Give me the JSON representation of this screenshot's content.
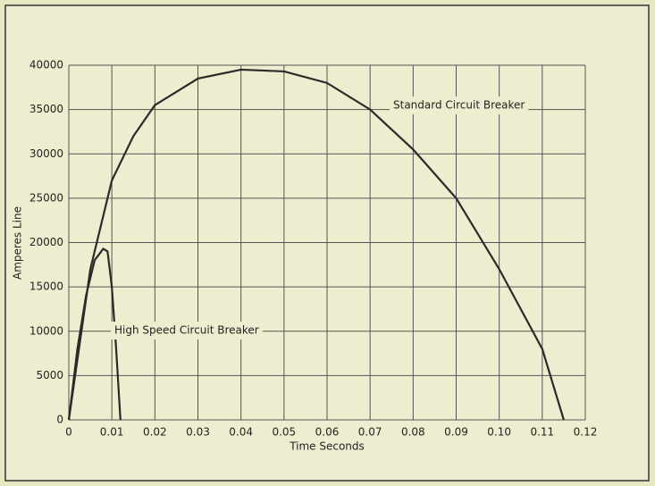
{
  "chart_data": {
    "type": "line",
    "x_label": "Time Seconds",
    "y_label": "Amperes Line",
    "xlim": [
      0,
      0.12
    ],
    "xticks": [
      0,
      0.01,
      0.02,
      0.03,
      0.04,
      0.05,
      0.06,
      0.07,
      0.08,
      0.09,
      {
        "value": 0.1,
        "label": "0.10"
      },
      0.11,
      0.12
    ],
    "ylim": [
      0,
      40000
    ],
    "yticks": [
      0,
      5000,
      10000,
      15000,
      20000,
      25000,
      30000,
      35000,
      40000
    ],
    "grid": true,
    "series": [
      {
        "name": "Standard Circuit Breaker",
        "color": "#2a2a2a",
        "x": [
          0,
          0.005,
          0.01,
          0.015,
          0.02,
          0.03,
          0.04,
          0.05,
          0.06,
          0.07,
          0.08,
          0.09,
          0.1,
          0.11,
          0.115
        ],
        "values": [
          0,
          17000,
          27000,
          32000,
          35500,
          38500,
          39500,
          39300,
          38000,
          35000,
          30500,
          25000,
          17000,
          8000,
          0
        ]
      },
      {
        "name": "High Speed Circuit Breaker",
        "color": "#2a2a2a",
        "x": [
          0,
          0.002,
          0.004,
          0.006,
          0.008,
          0.009,
          0.01,
          0.011,
          0.012
        ],
        "values": [
          0,
          8000,
          14000,
          18000,
          19300,
          19000,
          15000,
          8000,
          0
        ]
      }
    ]
  }
}
